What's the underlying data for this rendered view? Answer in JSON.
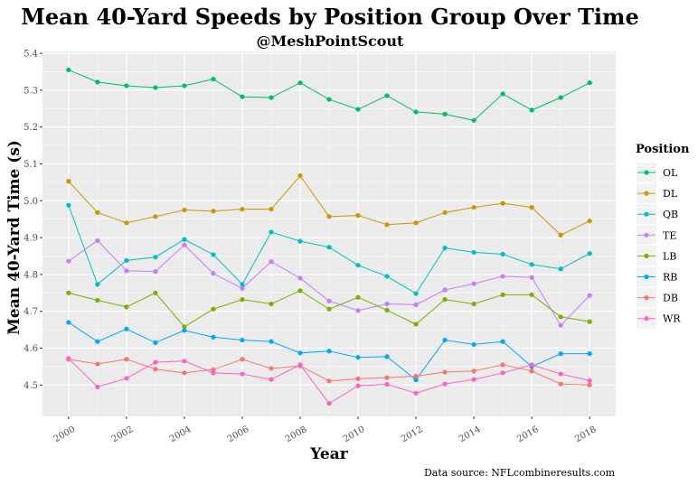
{
  "chart_data": {
    "type": "line",
    "title": "Mean 40-Yard Speeds by Position Group Over Time",
    "subtitle": "@MeshPointScout",
    "xlabel": "Year",
    "ylabel": "Mean 40-Yard Time (s)",
    "caption": "Data source: NFLcombineresults.com",
    "legend_title": "Position",
    "legend_position": "right",
    "grid": true,
    "xlim": [
      1999.1,
      2018.9
    ],
    "ylim": [
      4.415,
      5.405
    ],
    "x_ticks": [
      2000,
      2002,
      2004,
      2006,
      2008,
      2010,
      2012,
      2014,
      2016,
      2018
    ],
    "x_tick_labels": [
      "2000",
      "2002",
      "2004",
      "2006",
      "2008",
      "2010",
      "2012",
      "2014",
      "2016",
      "2018"
    ],
    "y_ticks": [
      4.5,
      4.6,
      4.7,
      4.8,
      4.9,
      5.0,
      5.1,
      5.2,
      5.3,
      5.4
    ],
    "y_tick_labels": [
      "4.5",
      "4.6",
      "4.7",
      "4.8",
      "4.9",
      "5.0",
      "5.1",
      "5.2",
      "5.3",
      "5.4"
    ],
    "x": [
      2000,
      2001,
      2002,
      2003,
      2004,
      2005,
      2006,
      2007,
      2008,
      2009,
      2010,
      2011,
      2012,
      2013,
      2014,
      2015,
      2016,
      2017,
      2018
    ],
    "series": [
      {
        "name": "OL",
        "color": "#00BE67",
        "values": [
          5.355,
          5.322,
          5.312,
          5.307,
          5.312,
          5.33,
          5.282,
          5.28,
          5.32,
          5.275,
          5.248,
          5.285,
          5.241,
          5.235,
          5.218,
          5.29,
          5.246,
          5.28,
          5.32
        ]
      },
      {
        "name": "DL",
        "color": "#CD9600",
        "values": [
          5.053,
          4.968,
          4.94,
          4.957,
          4.975,
          4.972,
          4.977,
          4.977,
          5.068,
          4.957,
          4.96,
          4.935,
          4.94,
          4.968,
          4.982,
          4.993,
          4.982,
          4.907,
          4.945
        ]
      },
      {
        "name": "QB",
        "color": "#00BFC4",
        "values": [
          4.988,
          4.773,
          4.838,
          4.847,
          4.895,
          4.854,
          4.773,
          4.915,
          4.89,
          4.874,
          4.825,
          4.795,
          4.748,
          4.872,
          4.86,
          4.855,
          4.827,
          4.815,
          4.857
        ]
      },
      {
        "name": "TE",
        "color": "#C77CFF",
        "values": [
          4.836,
          4.892,
          4.81,
          4.808,
          4.88,
          4.803,
          4.762,
          4.835,
          4.79,
          4.728,
          4.702,
          4.72,
          4.718,
          4.758,
          4.775,
          4.795,
          4.792,
          4.662,
          4.743
        ]
      },
      {
        "name": "LB",
        "color": "#7CAE00",
        "values": [
          4.75,
          4.73,
          4.712,
          4.75,
          4.658,
          4.706,
          4.732,
          4.72,
          4.756,
          4.706,
          4.738,
          4.703,
          4.665,
          4.732,
          4.72,
          4.745,
          4.745,
          4.685,
          4.672
        ]
      },
      {
        "name": "RB",
        "color": "#00A9FF",
        "values": [
          4.67,
          4.618,
          4.652,
          4.615,
          4.648,
          4.63,
          4.622,
          4.618,
          4.587,
          4.592,
          4.575,
          4.577,
          4.514,
          4.622,
          4.61,
          4.618,
          4.55,
          4.585,
          4.585
        ]
      },
      {
        "name": "DB",
        "color": "#F8766D",
        "values": [
          4.57,
          4.557,
          4.57,
          4.543,
          4.533,
          4.542,
          4.57,
          4.545,
          4.552,
          4.511,
          4.517,
          4.52,
          4.524,
          4.535,
          4.538,
          4.555,
          4.538,
          4.503,
          4.5
        ]
      },
      {
        "name": "WR",
        "color": "#FF61C3",
        "values": [
          4.572,
          4.495,
          4.518,
          4.562,
          4.565,
          4.533,
          4.53,
          4.515,
          4.555,
          4.45,
          4.498,
          4.502,
          4.478,
          4.503,
          4.515,
          4.533,
          4.555,
          4.53,
          4.512
        ]
      }
    ]
  }
}
